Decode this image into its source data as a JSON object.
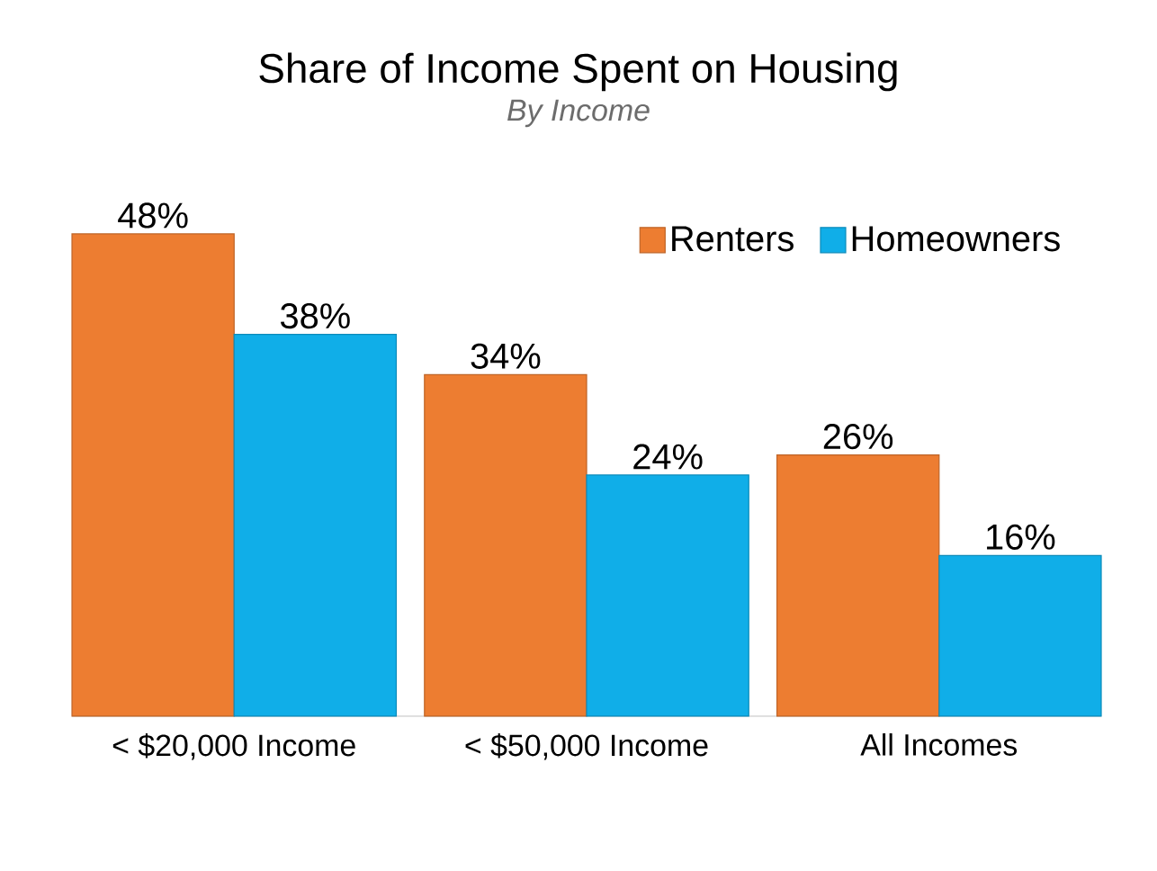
{
  "chart_data": {
    "type": "bar",
    "title": "Share of Income Spent on Housing",
    "subtitle": "By Income",
    "categories": [
      "< $20,000 Income",
      "< $50,000 Income",
      "All Incomes"
    ],
    "series": [
      {
        "name": "Renters",
        "color": "#ed7d31",
        "values": [
          48,
          34,
          26
        ],
        "value_labels": [
          "48%",
          "34%",
          "26%"
        ]
      },
      {
        "name": "Homeowners",
        "color": "#10aee8",
        "values": [
          38,
          24,
          16
        ],
        "value_labels": [
          "38%",
          "24%",
          "16%"
        ]
      }
    ],
    "legend": "top right",
    "grid": false
  }
}
